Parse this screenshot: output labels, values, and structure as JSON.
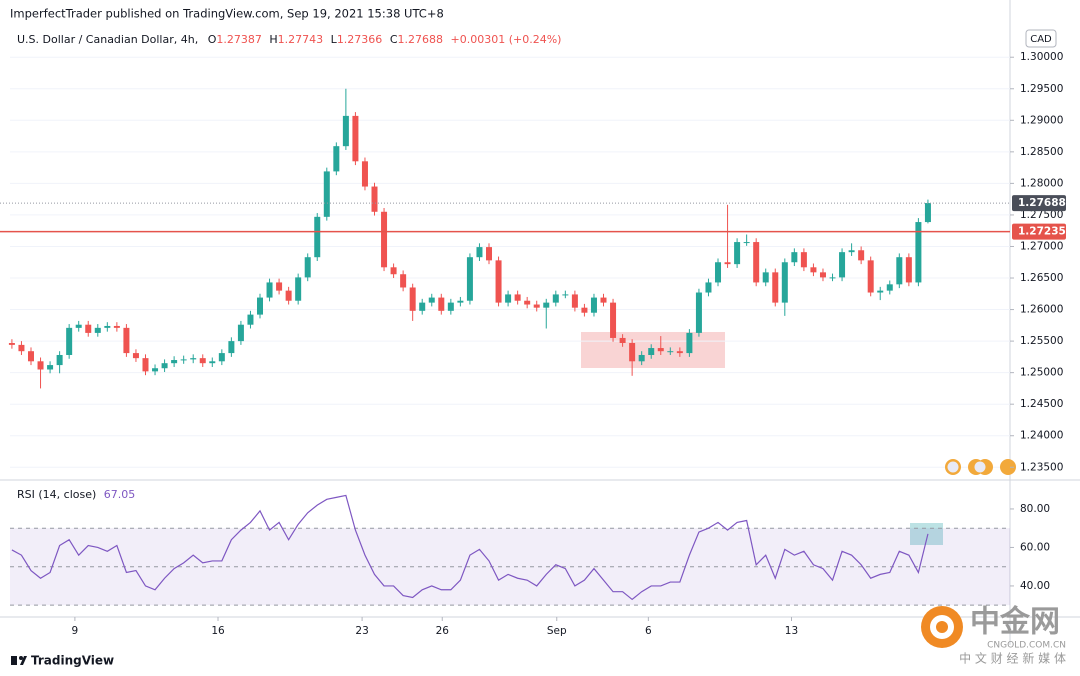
{
  "publisher_line": "ImperfectTrader published on TradingView.com, Sep 19, 2021 15:38 UTC+8",
  "brand": "TradingView",
  "watermark": {
    "name": "中金网",
    "domain": "CNGOLD.COM.CN",
    "tagline": "中 文 财 经 新 媒 体"
  },
  "chart_data": [
    {
      "type": "candlestick",
      "title": "U.S. Dollar / Canadian Dollar, 4h,",
      "ohlc_labels": [
        "O",
        "H",
        "L",
        "C"
      ],
      "change_label": "+0.00301 (+0.24%)",
      "currency": "CAD",
      "up_color": "#26a69a",
      "down_color": "#ef5350",
      "x": [
        0,
        1,
        2,
        3,
        4,
        5,
        6,
        7,
        8,
        9,
        10,
        11,
        12,
        13,
        14,
        15,
        16,
        17,
        18,
        19,
        20,
        21,
        22,
        23,
        24,
        25,
        26,
        27,
        28,
        29,
        30,
        31,
        32,
        33,
        34,
        35,
        36,
        37,
        38,
        39,
        40,
        41,
        42,
        43,
        44,
        45,
        46,
        47,
        48,
        49,
        50,
        51,
        52,
        53,
        54,
        55,
        56,
        57,
        58,
        59,
        60,
        61,
        62,
        63,
        64,
        65,
        66,
        67,
        68,
        69,
        70,
        71,
        72,
        73,
        74,
        75,
        76,
        77,
        78,
        79,
        80,
        81,
        82,
        83,
        84,
        85,
        86,
        87,
        88,
        89,
        90,
        91,
        92,
        93,
        94,
        95,
        96
      ],
      "open": [
        1.2547,
        1.2544,
        1.2534,
        1.2518,
        1.2505,
        1.2512,
        1.2528,
        1.2571,
        1.2576,
        1.2563,
        1.2571,
        1.2574,
        1.2571,
        1.2531,
        1.2523,
        1.2502,
        1.2507,
        1.2515,
        1.252,
        1.2521,
        1.2523,
        1.2515,
        1.2518,
        1.2531,
        1.255,
        1.2576,
        1.2592,
        1.2619,
        1.2643,
        1.263,
        1.2614,
        1.2651,
        1.2683,
        1.2747,
        1.2819,
        1.2859,
        1.2907,
        1.2835,
        1.2795,
        1.2755,
        1.2667,
        1.2656,
        1.2635,
        1.2598,
        1.2611,
        1.2619,
        1.2598,
        1.2611,
        1.2614,
        1.2683,
        1.2699,
        1.2678,
        1.2611,
        1.2624,
        1.2614,
        1.2608,
        1.2603,
        1.2611,
        1.2624,
        1.2624,
        1.2603,
        1.2595,
        1.2619,
        1.2611,
        1.2555,
        1.2547,
        1.2518,
        1.2528,
        1.2539,
        1.2534,
        1.2534,
        1.2531,
        1.2563,
        1.2627,
        1.2643,
        1.2675,
        1.2672,
        1.2707,
        1.2707,
        1.2643,
        1.2659,
        1.2611,
        1.2675,
        1.2691,
        1.2667,
        1.2659,
        1.2651,
        1.2651,
        1.2691,
        1.2694,
        1.2678,
        1.2627,
        1.263,
        1.264,
        1.2683,
        1.2643,
        1.27387
      ],
      "high": [
        1.2553,
        1.255,
        1.254,
        1.2524,
        1.2518,
        1.2534,
        1.2577,
        1.2582,
        1.2582,
        1.2577,
        1.258,
        1.258,
        1.2577,
        1.2537,
        1.2529,
        1.2513,
        1.2521,
        1.2526,
        1.2527,
        1.2529,
        1.2529,
        1.2524,
        1.2537,
        1.2556,
        1.2582,
        1.2598,
        1.2625,
        1.2649,
        1.2649,
        1.2636,
        1.2657,
        1.2689,
        1.2753,
        1.2825,
        1.2865,
        1.295,
        1.2913,
        1.2841,
        1.2801,
        1.2761,
        1.2673,
        1.2662,
        1.2641,
        1.2617,
        1.2625,
        1.2625,
        1.2617,
        1.262,
        1.2689,
        1.2705,
        1.2705,
        1.2684,
        1.263,
        1.263,
        1.262,
        1.2614,
        1.2617,
        1.263,
        1.263,
        1.263,
        1.2609,
        1.2625,
        1.2625,
        1.2617,
        1.2561,
        1.2553,
        1.2534,
        1.2545,
        1.2558,
        1.254,
        1.254,
        1.2569,
        1.2633,
        1.2649,
        1.2681,
        1.2766,
        1.2713,
        1.2719,
        1.2713,
        1.2665,
        1.2665,
        1.2681,
        1.2697,
        1.2697,
        1.2673,
        1.2665,
        1.2657,
        1.2697,
        1.2705,
        1.27,
        1.2684,
        1.2636,
        1.2646,
        1.2689,
        1.2689,
        1.2745,
        1.27743
      ],
      "low": [
        1.2538,
        1.2528,
        1.2512,
        1.2475,
        1.2499,
        1.2499,
        1.2522,
        1.2565,
        1.2557,
        1.2557,
        1.2565,
        1.2565,
        1.2525,
        1.2517,
        1.2496,
        1.2496,
        1.2501,
        1.2509,
        1.2514,
        1.2515,
        1.2509,
        1.2509,
        1.2512,
        1.2525,
        1.2544,
        1.257,
        1.2586,
        1.2613,
        1.2624,
        1.2608,
        1.2608,
        1.2645,
        1.2677,
        1.2741,
        1.2813,
        1.2853,
        1.2829,
        1.2789,
        1.2749,
        1.2661,
        1.265,
        1.2629,
        1.2582,
        1.2592,
        1.2605,
        1.2592,
        1.2592,
        1.2605,
        1.2608,
        1.2677,
        1.2672,
        1.2605,
        1.2605,
        1.2608,
        1.2602,
        1.2597,
        1.257,
        1.2605,
        1.2618,
        1.2597,
        1.2589,
        1.2589,
        1.2605,
        1.2549,
        1.2541,
        1.2495,
        1.2512,
        1.2522,
        1.2528,
        1.2528,
        1.2525,
        1.2525,
        1.2557,
        1.2621,
        1.2637,
        1.2666,
        1.2666,
        1.2701,
        1.2637,
        1.2637,
        1.2605,
        1.259,
        1.2669,
        1.2661,
        1.2653,
        1.2645,
        1.2645,
        1.2645,
        1.2685,
        1.2672,
        1.2621,
        1.2615,
        1.2624,
        1.2634,
        1.2637,
        1.2637,
        1.27366
      ],
      "close": [
        1.2544,
        1.2534,
        1.2518,
        1.2505,
        1.2512,
        1.2528,
        1.2571,
        1.2576,
        1.2563,
        1.2571,
        1.2574,
        1.2571,
        1.2531,
        1.2523,
        1.2502,
        1.2507,
        1.2515,
        1.252,
        1.2521,
        1.2523,
        1.2515,
        1.2518,
        1.2531,
        1.255,
        1.2576,
        1.2592,
        1.2619,
        1.2643,
        1.263,
        1.2614,
        1.2651,
        1.2683,
        1.2747,
        1.2819,
        1.2859,
        1.2907,
        1.2835,
        1.2795,
        1.2755,
        1.2667,
        1.2656,
        1.2635,
        1.2598,
        1.2611,
        1.2619,
        1.2598,
        1.2611,
        1.2614,
        1.2683,
        1.2699,
        1.2678,
        1.2611,
        1.2624,
        1.2614,
        1.2608,
        1.2603,
        1.2611,
        1.2624,
        1.2624,
        1.2603,
        1.2595,
        1.2619,
        1.2611,
        1.2555,
        1.2547,
        1.2518,
        1.2528,
        1.2539,
        1.2534,
        1.2534,
        1.2531,
        1.2563,
        1.2627,
        1.2643,
        1.2675,
        1.2672,
        1.2707,
        1.2707,
        1.2643,
        1.2659,
        1.2611,
        1.2675,
        1.2691,
        1.2667,
        1.2659,
        1.2651,
        1.2651,
        1.2691,
        1.2694,
        1.2678,
        1.2627,
        1.263,
        1.264,
        1.2683,
        1.2643,
        1.27387,
        1.27688
      ],
      "level_line": {
        "value": 1.27235,
        "color": "#e5534b"
      },
      "xlim": [
        -0.2,
        104.6
      ],
      "ylim": [
        1.2333,
        1.3059
      ],
      "yticks": [
        {
          "value": 1.3,
          "label": "1.30000"
        },
        {
          "value": 1.295,
          "label": "1.29500"
        },
        {
          "value": 1.29,
          "label": "1.29000"
        },
        {
          "value": 1.285,
          "label": "1.28500"
        },
        {
          "value": 1.28,
          "label": "1.28000"
        },
        {
          "value": 1.275,
          "label": "1.27500"
        },
        {
          "value": 1.27,
          "label": "1.27000"
        },
        {
          "value": 1.265,
          "label": "1.26500"
        },
        {
          "value": 1.26,
          "label": "1.26000"
        },
        {
          "value": 1.255,
          "label": "1.25500"
        },
        {
          "value": 1.25,
          "label": "1.25000"
        },
        {
          "value": 1.245,
          "label": "1.24500"
        },
        {
          "value": 1.24,
          "label": "1.24000"
        },
        {
          "value": 1.235,
          "label": "1.23500"
        }
      ]
    },
    {
      "type": "line",
      "title": "RSI (14, close)",
      "color": "#7e57c2",
      "x": [
        0,
        1,
        2,
        3,
        4,
        5,
        6,
        7,
        8,
        9,
        10,
        11,
        12,
        13,
        14,
        15,
        16,
        17,
        18,
        19,
        20,
        21,
        22,
        23,
        24,
        25,
        26,
        27,
        28,
        29,
        30,
        31,
        32,
        33,
        34,
        35,
        36,
        37,
        38,
        39,
        40,
        41,
        42,
        43,
        44,
        45,
        46,
        47,
        48,
        49,
        50,
        51,
        52,
        53,
        54,
        55,
        56,
        57,
        58,
        59,
        60,
        61,
        62,
        63,
        64,
        65,
        66,
        67,
        68,
        69,
        70,
        71,
        72,
        73,
        74,
        75,
        76,
        77,
        78,
        79,
        80,
        81,
        82,
        83,
        84,
        85,
        86,
        87,
        88,
        89,
        90,
        91,
        92,
        93,
        94,
        95,
        96
      ],
      "values": [
        58.7,
        56,
        48,
        44,
        47,
        61,
        64,
        56,
        61,
        60,
        58,
        61,
        47,
        48,
        40,
        38,
        44,
        49,
        52,
        56,
        52,
        53,
        53,
        64,
        69,
        73,
        79,
        69,
        73,
        64,
        72,
        78,
        82,
        85,
        86,
        87,
        69,
        56,
        46,
        40,
        40,
        35,
        34,
        38,
        40,
        38,
        38,
        43,
        56,
        59,
        53,
        43,
        46,
        44,
        43,
        40,
        46,
        51,
        49,
        40,
        43,
        49,
        43,
        37,
        37,
        33,
        37,
        40,
        40,
        42,
        42,
        56,
        68,
        70,
        73,
        69,
        73,
        74,
        51,
        56,
        44,
        59,
        56,
        58,
        51,
        49,
        43,
        58,
        56,
        51,
        44,
        46,
        47,
        58,
        56,
        47,
        67.05
      ],
      "levels": [
        70,
        50,
        30
      ],
      "xlim": [
        -0.2,
        104.6
      ],
      "ylim": [
        24.9,
        94
      ],
      "yticks": [
        {
          "value": 80,
          "label": "80.00"
        },
        {
          "value": 60,
          "label": "60.00"
        },
        {
          "value": 40,
          "label": "40.00"
        }
      ],
      "xticks": [
        {
          "value": 6.6,
          "label": "9"
        },
        {
          "value": 21.6,
          "label": "16"
        },
        {
          "value": 36.7,
          "label": "23"
        },
        {
          "value": 45.1,
          "label": "26"
        },
        {
          "value": 57.1,
          "label": "Sep"
        },
        {
          "value": 66.7,
          "label": "6"
        },
        {
          "value": 81.7,
          "label": "13"
        }
      ]
    }
  ]
}
